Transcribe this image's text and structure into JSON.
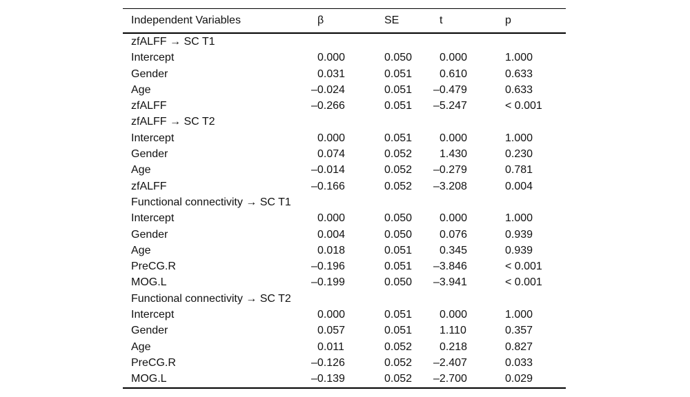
{
  "page": {
    "background": "#ffffff",
    "text_color": "#111111",
    "rule_color": "#000000"
  },
  "table": {
    "columns": [
      "Independent Variables",
      "β",
      "SE",
      "t",
      "p"
    ],
    "sections": [
      {
        "header": "zfALFF → SC T1",
        "rows": [
          [
            "Intercept",
            "0.000",
            "0.050",
            "0.000",
            "1.000"
          ],
          [
            "Gender",
            "0.031",
            "0.051",
            "0.610",
            "0.633"
          ],
          [
            "Age",
            "–0.024",
            "0.051",
            "–0.479",
            "0.633"
          ],
          [
            "zfALFF",
            "–0.266",
            "0.051",
            "–5.247",
            "< 0.001"
          ]
        ]
      },
      {
        "header": "zfALFF → SC T2",
        "rows": [
          [
            "Intercept",
            "0.000",
            "0.051",
            "0.000",
            "1.000"
          ],
          [
            "Gender",
            "0.074",
            "0.052",
            "1.430",
            "0.230"
          ],
          [
            "Age",
            "–0.014",
            "0.052",
            "–0.279",
            "0.781"
          ],
          [
            "zfALFF",
            "–0.166",
            "0.052",
            "–3.208",
            "0.004"
          ]
        ]
      },
      {
        "header": "Functional connectivity → SC T1",
        "rows": [
          [
            "Intercept",
            "0.000",
            "0.050",
            "0.000",
            "1.000"
          ],
          [
            "Gender",
            "0.004",
            "0.050",
            "0.076",
            "0.939"
          ],
          [
            "Age",
            "0.018",
            "0.051",
            "0.345",
            "0.939"
          ],
          [
            "PreCG.R",
            "–0.196",
            "0.051",
            "–3.846",
            "< 0.001"
          ],
          [
            "MOG.L",
            "–0.199",
            "0.050",
            "–3.941",
            "< 0.001"
          ]
        ]
      },
      {
        "header": "Functional connectivity → SC T2",
        "rows": [
          [
            "Intercept",
            "0.000",
            "0.051",
            "0.000",
            "1.000"
          ],
          [
            "Gender",
            "0.057",
            "0.051",
            "1.110",
            "0.357"
          ],
          [
            "Age",
            "0.011",
            "0.052",
            "0.218",
            "0.827"
          ],
          [
            "PreCG.R",
            "–0.126",
            "0.052",
            "–2.407",
            "0.033"
          ],
          [
            "MOG.L",
            "–0.139",
            "0.052",
            "–2.700",
            "0.029"
          ]
        ]
      }
    ]
  }
}
